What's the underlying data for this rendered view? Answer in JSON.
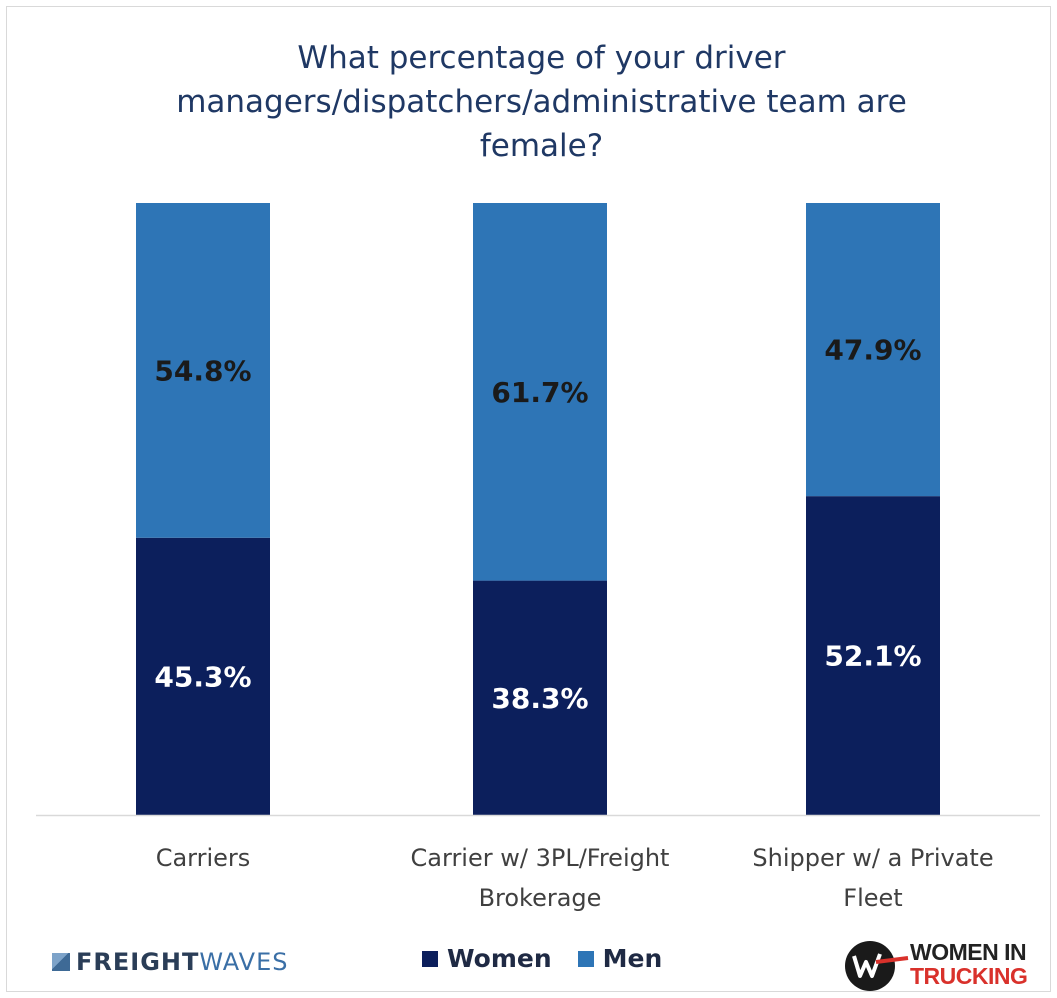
{
  "chart_data": {
    "type": "bar",
    "stacked": true,
    "title_lines": [
      "What percentage of your driver",
      "managers/dispatchers/administrative team are",
      "female?"
    ],
    "categories": [
      [
        "Carriers"
      ],
      [
        "Carrier w/ 3PL/Freight",
        "Brokerage"
      ],
      [
        "Shipper w/ a Private",
        "Fleet"
      ]
    ],
    "series": [
      {
        "name": "Women",
        "color": "#0c1f5c",
        "values": [
          45.3,
          38.3,
          52.1
        ],
        "labels": [
          "45.3%",
          "38.3%",
          "52.1%"
        ]
      },
      {
        "name": "Men",
        "color": "#2e75b6",
        "values": [
          54.8,
          61.7,
          47.9
        ],
        "labels": [
          "54.8%",
          "61.7%",
          "47.9%"
        ]
      }
    ],
    "ylim": [
      0,
      100
    ],
    "grid": false,
    "legend": "bottom-center"
  },
  "logos": {
    "freightwaves": {
      "part1": "FREIGHT",
      "part2": "WAVES"
    },
    "wit": {
      "line1": "WOMEN IN",
      "line2": "TRUCKING"
    }
  }
}
